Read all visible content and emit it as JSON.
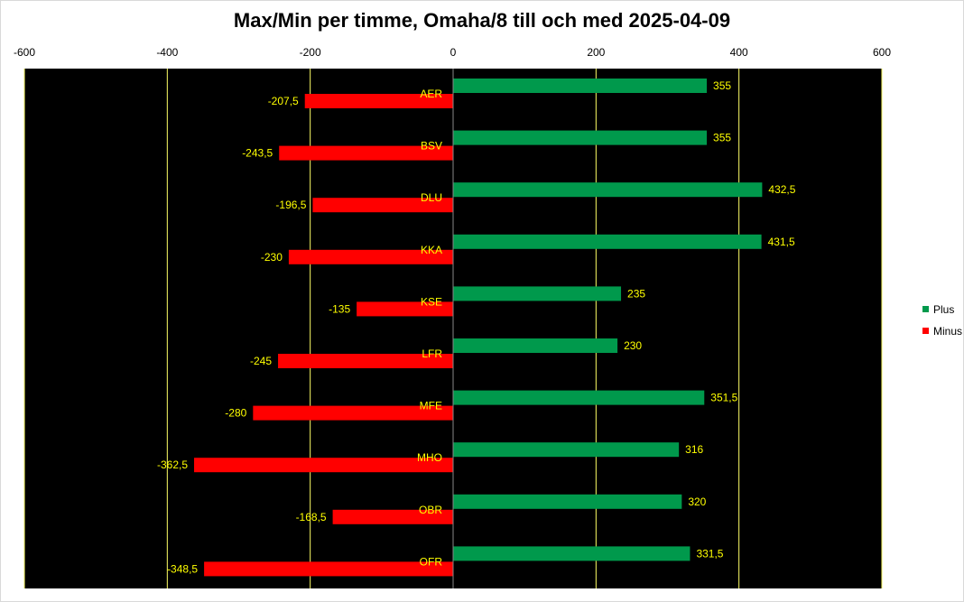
{
  "chart_data": {
    "type": "bar",
    "orientation": "horizontal",
    "title": "Max/Min per timme, Omaha/8 till och med 2025-04-09",
    "categories": [
      "AER",
      "BSV",
      "DLU",
      "KKA",
      "KSE",
      "LFR",
      "MFE",
      "MHO",
      "OBR",
      "OFR"
    ],
    "series": [
      {
        "name": "Plus",
        "color": "#00994c",
        "values": [
          355,
          355,
          432.5,
          431.5,
          235,
          230,
          351.5,
          316,
          320,
          331.5
        ],
        "labels": [
          "355",
          "355",
          "432,5",
          "431,5",
          "235",
          "230",
          "351,5",
          "316",
          "320",
          "331,5"
        ]
      },
      {
        "name": "Minus",
        "color": "#ff0000",
        "values": [
          -207.5,
          -243.5,
          -196.5,
          -230,
          -135,
          -245,
          -280,
          -362.5,
          -168.5,
          -348.5
        ],
        "labels": [
          "-207,5",
          "-243,5",
          "-196,5",
          "-230",
          "-135",
          "-245",
          "-280",
          "-362,5",
          "-168,5",
          "-348,5"
        ]
      }
    ],
    "xlim": [
      -600,
      600
    ],
    "xticks": [
      -600,
      -400,
      -200,
      0,
      200,
      400,
      600
    ],
    "xtick_labels": [
      "-600",
      "-400",
      "-200",
      "0",
      "200",
      "400",
      "600"
    ],
    "xaxis_position": "top",
    "grid": true,
    "grid_color": "#ffff66",
    "plot_background": "#000000",
    "label_color": "#ffff00",
    "legend_position": "right"
  }
}
